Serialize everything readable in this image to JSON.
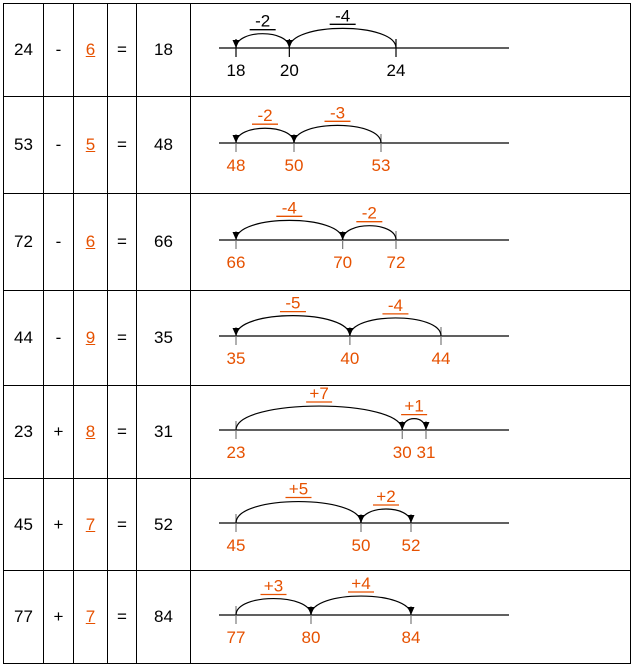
{
  "colors": {
    "black": "#000000",
    "orange": "#e65100",
    "tick": "#7a7a7a"
  },
  "rows": [
    {
      "a": "24",
      "op": "-",
      "b": "6",
      "eq": "=",
      "result": "18",
      "hops": [
        {
          "label": "-2",
          "from": 20,
          "to": 18
        },
        {
          "label": "-4",
          "from": 24,
          "to": 20
        }
      ],
      "ticks": [
        {
          "value": 18,
          "label": "18"
        },
        {
          "value": 20,
          "label": "20"
        },
        {
          "value": 24,
          "label": "24"
        }
      ],
      "line_color": "black"
    },
    {
      "a": "53",
      "op": "-",
      "b": "5",
      "eq": "=",
      "result": "48",
      "hops": [
        {
          "label": "-2",
          "from": 50,
          "to": 48
        },
        {
          "label": "-3",
          "from": 53,
          "to": 50
        }
      ],
      "ticks": [
        {
          "value": 48,
          "label": "48"
        },
        {
          "value": 50,
          "label": "50"
        },
        {
          "value": 53,
          "label": "53"
        }
      ],
      "line_color": "orange"
    },
    {
      "a": "72",
      "op": "-",
      "b": "6",
      "eq": "=",
      "result": "66",
      "hops": [
        {
          "label": "-4",
          "from": 70,
          "to": 66
        },
        {
          "label": "-2",
          "from": 72,
          "to": 70
        }
      ],
      "ticks": [
        {
          "value": 66,
          "label": "66"
        },
        {
          "value": 70,
          "label": "70"
        },
        {
          "value": 72,
          "label": "72"
        }
      ],
      "line_color": "orange"
    },
    {
      "a": "44",
      "op": "-",
      "b": "9",
      "eq": "=",
      "result": "35",
      "hops": [
        {
          "label": "-5",
          "from": 40,
          "to": 35
        },
        {
          "label": "-4",
          "from": 44,
          "to": 40
        }
      ],
      "ticks": [
        {
          "value": 35,
          "label": "35"
        },
        {
          "value": 40,
          "label": "40"
        },
        {
          "value": 44,
          "label": "44"
        }
      ],
      "line_color": "orange"
    },
    {
      "a": "23",
      "op": "+",
      "b": "8",
      "eq": "=",
      "result": "31",
      "hops": [
        {
          "label": "+7",
          "from": 23,
          "to": 30
        },
        {
          "label": "+1",
          "from": 30,
          "to": 31
        }
      ],
      "ticks": [
        {
          "value": 23,
          "label": "23"
        },
        {
          "value": 30,
          "label": "30"
        },
        {
          "value": 31,
          "label": "31"
        }
      ],
      "line_color": "orange"
    },
    {
      "a": "45",
      "op": "+",
      "b": "7",
      "eq": "=",
      "result": "52",
      "hops": [
        {
          "label": "+5",
          "from": 45,
          "to": 50
        },
        {
          "label": "+2",
          "from": 50,
          "to": 52
        }
      ],
      "ticks": [
        {
          "value": 45,
          "label": "45"
        },
        {
          "value": 50,
          "label": "50"
        },
        {
          "value": 52,
          "label": "52"
        }
      ],
      "line_color": "orange"
    },
    {
      "a": "77",
      "op": "+",
      "b": "7",
      "eq": "=",
      "result": "84",
      "hops": [
        {
          "label": "+3",
          "from": 77,
          "to": 80
        },
        {
          "label": "+4",
          "from": 80,
          "to": 84
        }
      ],
      "ticks": [
        {
          "value": 77,
          "label": "77"
        },
        {
          "value": 80,
          "label": "80"
        },
        {
          "value": 84,
          "label": "84"
        }
      ],
      "line_color": "orange"
    }
  ]
}
